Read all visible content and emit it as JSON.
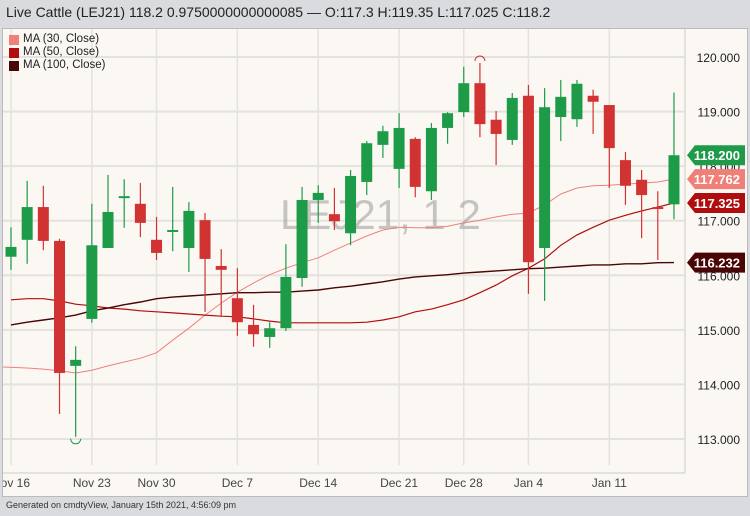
{
  "header": {
    "title": "Live Cattle (LEJ21) 118.2 0.9750000000000085 — O:117.3 H:119.35 L:117.025 C:118.2"
  },
  "footer": {
    "text": "Generated on cmdtyView, January 15th 2021, 4:56:09 pm"
  },
  "watermark": "LEJ21, 1 2",
  "colors": {
    "up": "#1e9b48",
    "down": "#d13232",
    "ma30": "#f07f7a",
    "ma50": "#b00e0e",
    "ma100": "#4a0505",
    "grid": "#e4e2de",
    "background": "#fbf8f3"
  },
  "chart_data": {
    "type": "candlestick",
    "ylim": [
      112.8,
      120.45
    ],
    "y_ticks": [
      "120.000",
      "119.000",
      "118.000",
      "117.000",
      "116.000",
      "115.000",
      "114.000",
      "113.000"
    ],
    "x_ticks": [
      {
        "label": "Nov 16",
        "date": "2020-11-16"
      },
      {
        "label": "Nov 23",
        "date": "2020-11-23"
      },
      {
        "label": "Nov 30",
        "date": "2020-11-30"
      },
      {
        "label": "Dec 7",
        "date": "2020-12-07"
      },
      {
        "label": "Dec 14",
        "date": "2020-12-14"
      },
      {
        "label": "Dec 21",
        "date": "2020-12-21"
      },
      {
        "label": "Dec 28",
        "date": "2020-12-28"
      },
      {
        "label": "Jan 4",
        "date": "2021-01-04"
      },
      {
        "label": "Jan 11",
        "date": "2021-01-11"
      }
    ],
    "grid": true,
    "legend": "top-left",
    "dates": [
      "2020-11-16",
      "2020-11-17",
      "2020-11-18",
      "2020-11-19",
      "2020-11-20",
      "2020-11-23",
      "2020-11-24",
      "2020-11-25",
      "2020-11-27",
      "2020-11-30",
      "2020-12-01",
      "2020-12-02",
      "2020-12-03",
      "2020-12-04",
      "2020-12-07",
      "2020-12-08",
      "2020-12-09",
      "2020-12-10",
      "2020-12-11",
      "2020-12-14",
      "2020-12-15",
      "2020-12-16",
      "2020-12-17",
      "2020-12-18",
      "2020-12-21",
      "2020-12-22",
      "2020-12-23",
      "2020-12-24",
      "2020-12-28",
      "2020-12-29",
      "2020-12-30",
      "2020-12-31",
      "2021-01-04",
      "2021-01-05",
      "2021-01-06",
      "2021-01-07",
      "2021-01-08",
      "2021-01-11",
      "2021-01-12",
      "2021-01-13",
      "2021-01-14",
      "2021-01-15"
    ],
    "ohlc": [
      [
        116.34,
        116.88,
        116.1,
        116.52
      ],
      [
        116.65,
        117.73,
        116.21,
        117.25
      ],
      [
        117.25,
        117.64,
        116.46,
        116.63
      ],
      [
        116.63,
        116.67,
        113.46,
        114.21
      ],
      [
        114.34,
        114.7,
        113.04,
        114.45
      ],
      [
        115.2,
        117.31,
        115.13,
        116.55
      ],
      [
        116.5,
        117.84,
        116.5,
        117.16
      ],
      [
        117.43,
        117.76,
        116.87,
        117.45
      ],
      [
        117.31,
        117.69,
        116.7,
        116.96
      ],
      [
        116.65,
        117.07,
        116.28,
        116.41
      ],
      [
        116.81,
        117.62,
        116.44,
        116.83
      ],
      [
        116.5,
        117.34,
        116.06,
        117.18
      ],
      [
        117.01,
        117.14,
        115.33,
        116.3
      ],
      [
        116.17,
        116.48,
        115.24,
        116.1
      ],
      [
        115.58,
        116.13,
        114.89,
        115.14
      ],
      [
        115.09,
        115.46,
        114.69,
        114.92
      ],
      [
        114.87,
        115.14,
        114.67,
        115.03
      ],
      [
        115.03,
        116.57,
        114.98,
        115.97
      ],
      [
        115.95,
        117.62,
        115.79,
        117.38
      ],
      [
        117.38,
        117.65,
        116.96,
        117.51
      ],
      [
        117.12,
        117.6,
        116.83,
        116.99
      ],
      [
        116.77,
        117.93,
        116.55,
        117.82
      ],
      [
        117.71,
        118.46,
        117.47,
        118.42
      ],
      [
        118.39,
        118.74,
        118.15,
        118.64
      ],
      [
        117.95,
        118.97,
        117.6,
        118.7
      ],
      [
        118.5,
        118.53,
        117.43,
        117.62
      ],
      [
        117.54,
        118.79,
        117.38,
        118.7
      ],
      [
        118.7,
        118.99,
        118.41,
        118.97
      ],
      [
        118.99,
        119.82,
        118.9,
        119.52
      ],
      [
        119.52,
        119.89,
        118.53,
        118.77
      ],
      [
        118.85,
        119.01,
        118.02,
        118.59
      ],
      [
        118.48,
        119.34,
        118.39,
        119.25
      ],
      [
        119.29,
        119.49,
        115.66,
        116.24
      ],
      [
        116.5,
        119.43,
        115.53,
        119.08
      ],
      [
        118.9,
        119.58,
        118.46,
        119.27
      ],
      [
        118.86,
        119.58,
        118.72,
        119.51
      ],
      [
        119.29,
        119.4,
        118.59,
        119.18
      ],
      [
        119.12,
        119.12,
        117.6,
        118.33
      ],
      [
        118.11,
        118.26,
        117.29,
        117.64
      ],
      [
        117.75,
        117.93,
        116.68,
        117.47
      ],
      [
        117.25,
        117.54,
        116.28,
        117.225
      ],
      [
        117.3,
        119.35,
        117.025,
        118.2
      ]
    ],
    "series": [
      {
        "name": "MA (30, Close)",
        "last": "117.762",
        "values": [
          114.32,
          114.3,
          114.28,
          114.25,
          114.21,
          114.26,
          114.34,
          114.41,
          114.48,
          114.58,
          114.81,
          115.03,
          115.27,
          115.49,
          115.69,
          115.86,
          116.01,
          116.13,
          116.23,
          116.32,
          116.46,
          116.59,
          116.72,
          116.83,
          116.88,
          116.87,
          116.87,
          116.9,
          116.96,
          117.01,
          117.07,
          117.12,
          117.14,
          117.29,
          117.49,
          117.6,
          117.64,
          117.65,
          117.67,
          117.69,
          117.71,
          117.762
        ]
      },
      {
        "name": "MA (50, Close)",
        "last": "117.325",
        "values": [
          115.55,
          115.57,
          115.57,
          115.53,
          115.47,
          115.44,
          115.4,
          115.38,
          115.35,
          115.33,
          115.31,
          115.29,
          115.27,
          115.25,
          115.24,
          115.2,
          115.16,
          115.13,
          115.13,
          115.13,
          115.13,
          115.13,
          115.14,
          115.18,
          115.24,
          115.33,
          115.38,
          115.46,
          115.55,
          115.68,
          115.82,
          115.99,
          116.13,
          116.3,
          116.55,
          116.74,
          116.88,
          117.01,
          117.1,
          117.18,
          117.25,
          117.325
        ]
      },
      {
        "name": "MA (100, Close)",
        "last": "116.232",
        "values": [
          115.09,
          115.14,
          115.18,
          115.22,
          115.27,
          115.35,
          115.4,
          115.46,
          115.51,
          115.57,
          115.6,
          115.62,
          115.64,
          115.66,
          115.68,
          115.68,
          115.69,
          115.69,
          115.71,
          115.73,
          115.77,
          115.8,
          115.84,
          115.88,
          115.93,
          115.97,
          115.99,
          116.01,
          116.04,
          116.06,
          116.08,
          116.1,
          116.12,
          116.13,
          116.15,
          116.17,
          116.19,
          116.19,
          116.21,
          116.21,
          116.23,
          116.232
        ]
      }
    ],
    "last_close": "118.200",
    "high_marker_date": "2020-12-29",
    "low_marker_date": "2020-11-20"
  }
}
